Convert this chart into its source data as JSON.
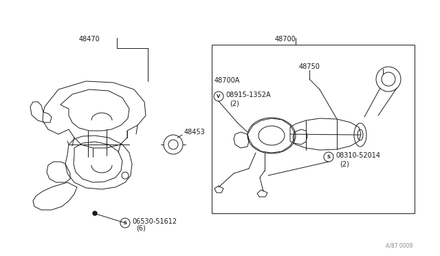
{
  "bg_color": "#ffffff",
  "line_color": "#1a1a1a",
  "text_color": "#1a1a1a",
  "fig_width": 6.4,
  "fig_height": 3.72,
  "dpi": 100,
  "watermark": "A/87 0009",
  "part_48470_label": "48470",
  "part_48700_label": "48700",
  "part_48700A_label": "48700A",
  "part_48750_label": "48750",
  "part_48453_label": "48453",
  "part_v_label": "08915-1352A",
  "part_v_qty": "(2)",
  "part_s1_label": "06530-51612",
  "part_s1_qty": "(6)",
  "part_s2_label": "08310-52014",
  "part_s2_qty": "(2)"
}
